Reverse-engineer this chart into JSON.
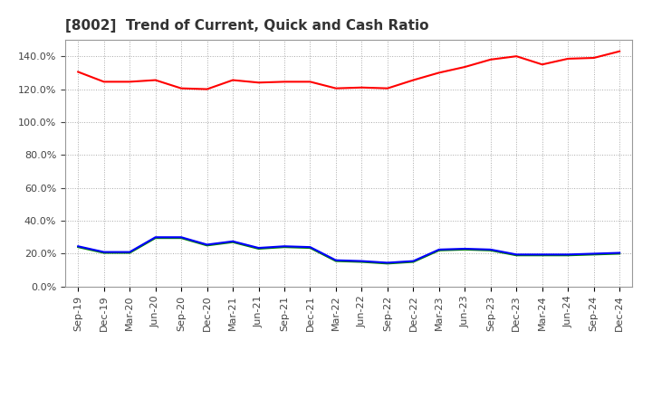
{
  "title": "[8002]  Trend of Current, Quick and Cash Ratio",
  "x_labels": [
    "Sep-19",
    "Dec-19",
    "Mar-20",
    "Jun-20",
    "Sep-20",
    "Dec-20",
    "Mar-21",
    "Jun-21",
    "Sep-21",
    "Dec-21",
    "Mar-22",
    "Jun-22",
    "Sep-22",
    "Dec-22",
    "Mar-23",
    "Jun-23",
    "Sep-23",
    "Dec-23",
    "Mar-24",
    "Jun-24",
    "Sep-24",
    "Dec-24"
  ],
  "current_ratio": [
    130.5,
    124.5,
    124.5,
    125.5,
    120.5,
    120.0,
    125.5,
    124.0,
    124.5,
    124.5,
    120.5,
    121.0,
    120.5,
    125.5,
    130.0,
    133.5,
    138.0,
    140.0,
    135.0,
    138.5,
    139.0,
    143.0
  ],
  "quick_ratio": [
    24.0,
    20.5,
    20.5,
    29.5,
    29.5,
    25.0,
    27.0,
    23.0,
    24.0,
    23.5,
    15.5,
    15.0,
    14.0,
    15.0,
    22.0,
    22.5,
    22.0,
    19.0,
    19.0,
    19.0,
    19.5,
    20.0
  ],
  "cash_ratio": [
    24.5,
    21.0,
    21.0,
    30.0,
    30.0,
    25.5,
    27.5,
    23.5,
    24.5,
    24.0,
    16.0,
    15.5,
    14.5,
    15.5,
    22.5,
    23.0,
    22.5,
    19.5,
    19.5,
    19.5,
    20.0,
    20.5
  ],
  "current_color": "#ff0000",
  "quick_color": "#008000",
  "cash_color": "#0000ff",
  "background_color": "#ffffff",
  "plot_bg_color": "#ffffff",
  "grid_color": "#aaaaaa",
  "ylim": [
    0,
    150
  ],
  "yticks": [
    0,
    20,
    40,
    60,
    80,
    100,
    120,
    140
  ],
  "line_width": 1.5,
  "title_fontsize": 11,
  "title_color": "#333333",
  "legend_fontsize": 9,
  "tick_fontsize": 8,
  "tick_color": "#444444"
}
